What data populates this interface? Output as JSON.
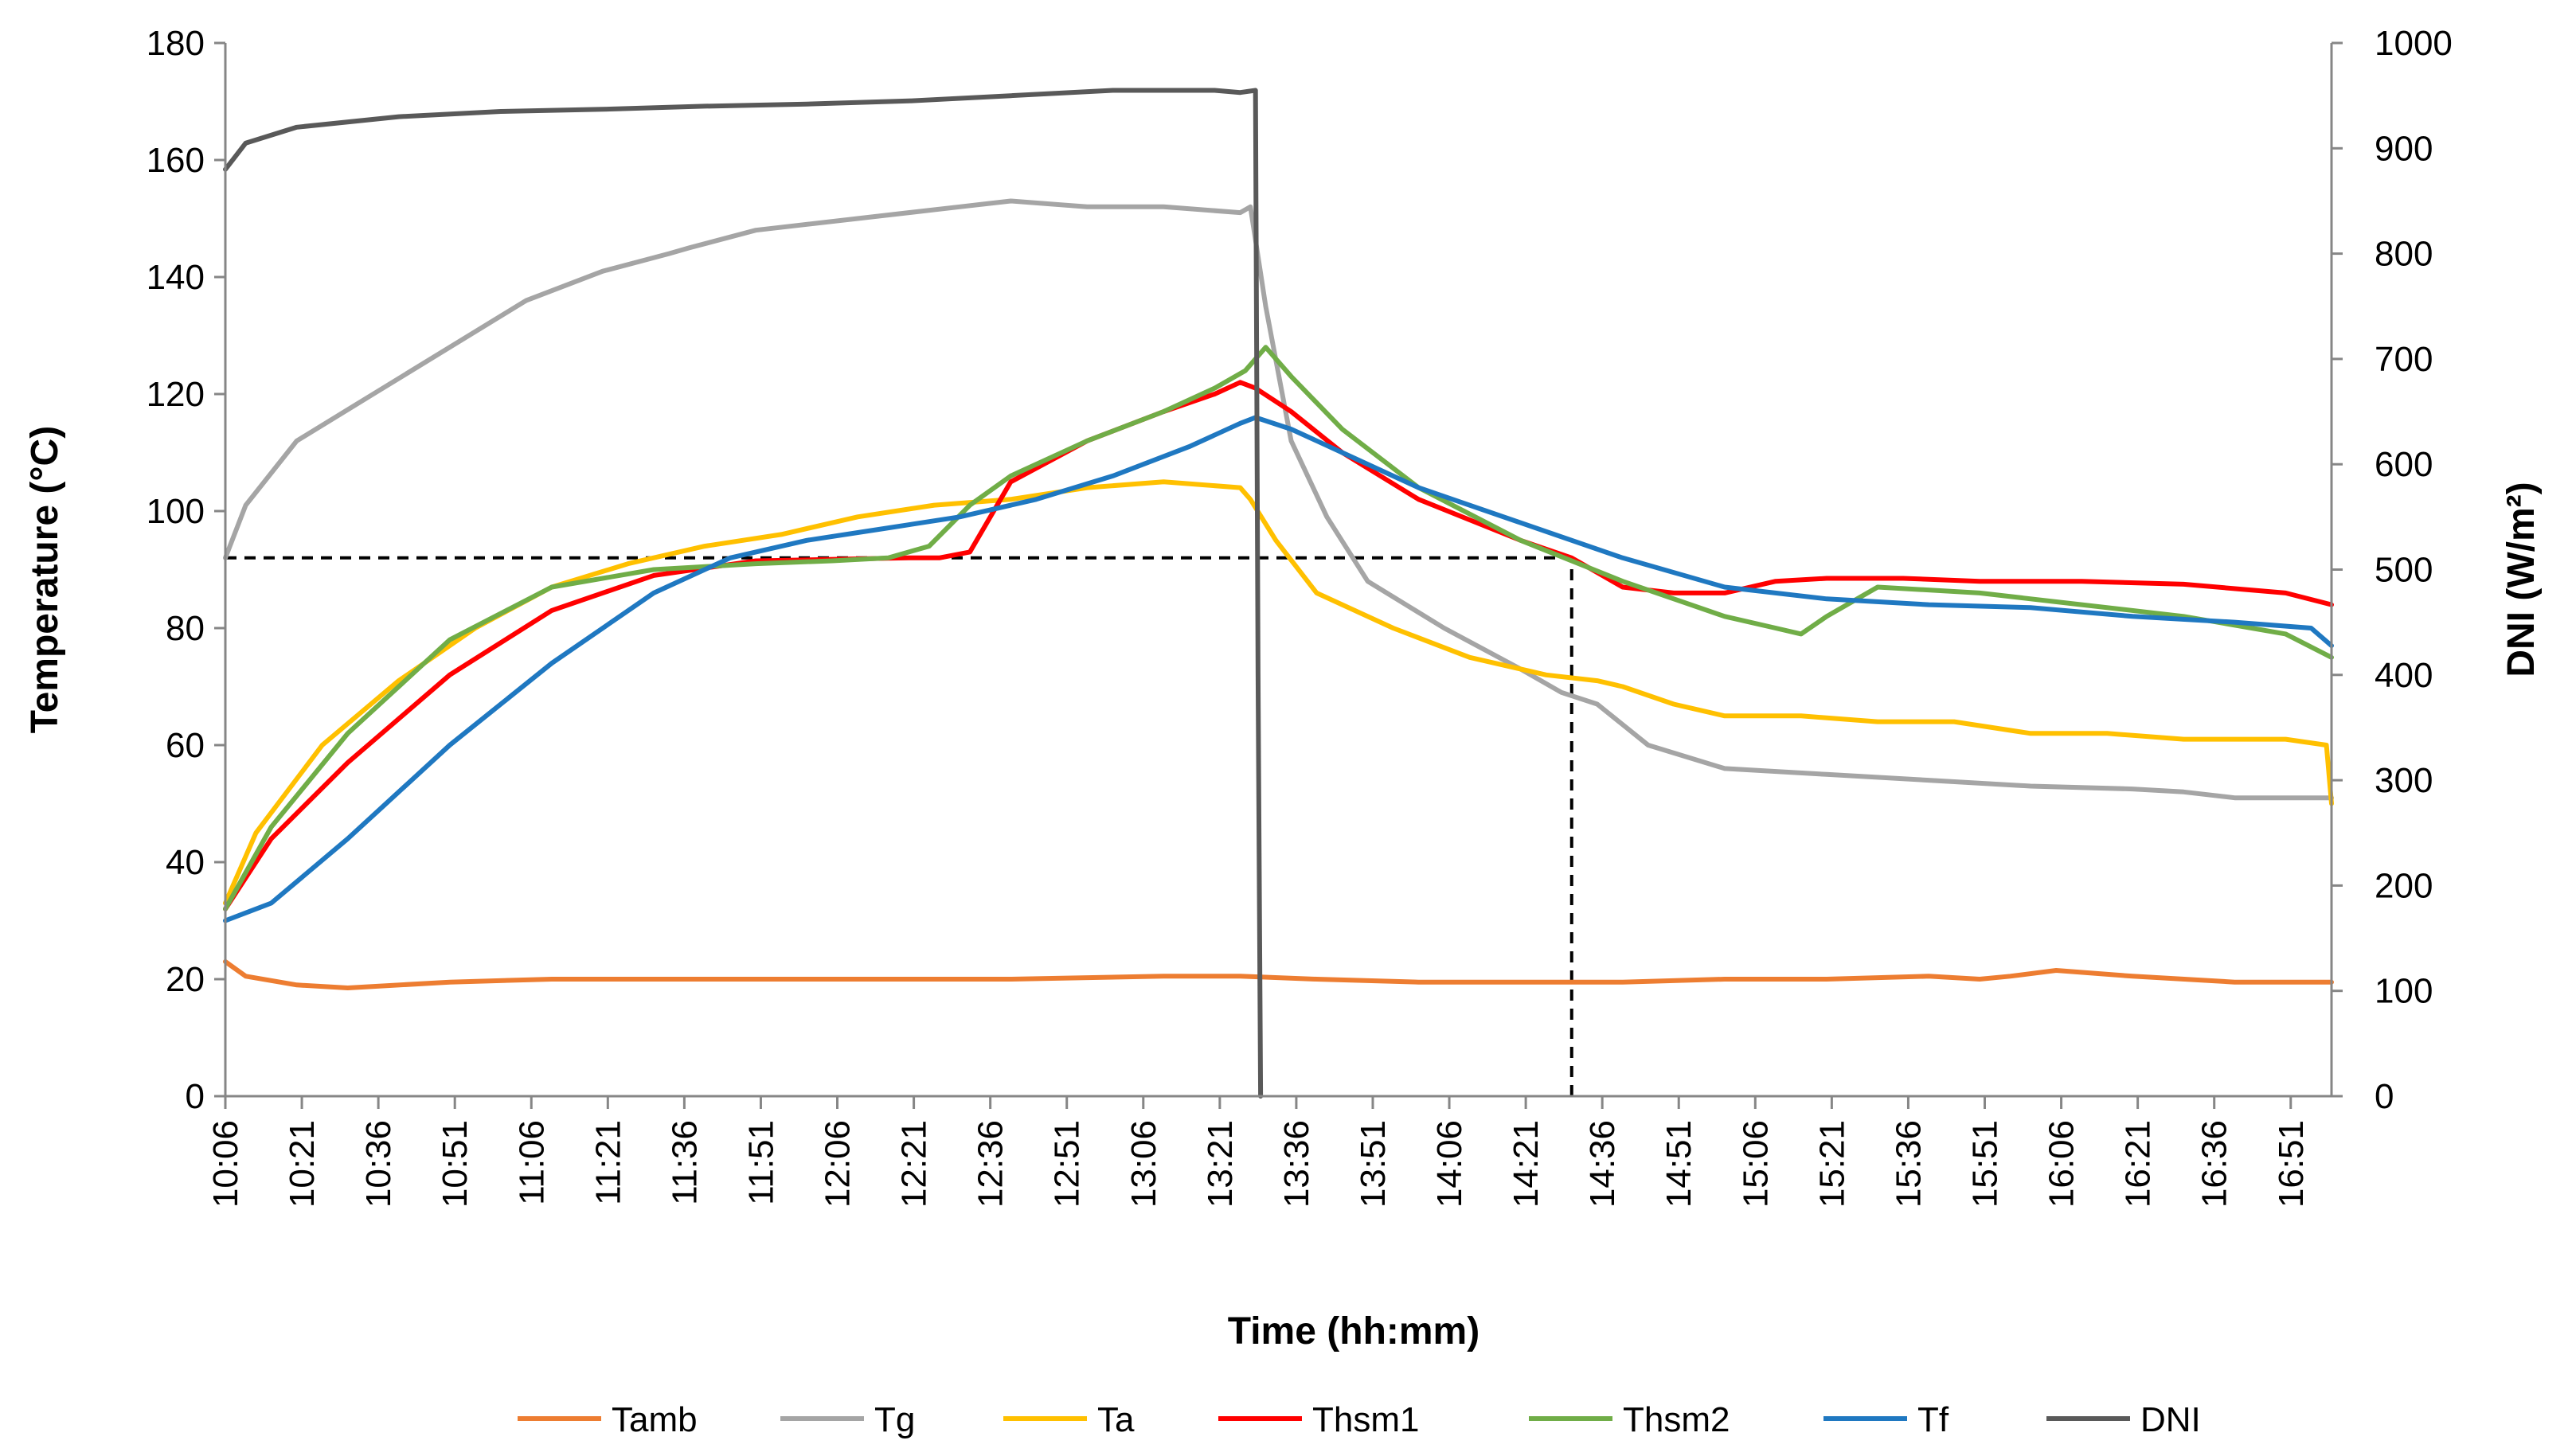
{
  "chart_data": {
    "type": "line",
    "title": "",
    "xlabel": "Time (hh:mm)",
    "ylabel": "Temperature (°C)",
    "y2label": "DNI (W/m²)",
    "ylim": [
      0,
      180
    ],
    "y2lim": [
      0,
      1000
    ],
    "yticks": [
      0,
      20,
      40,
      60,
      80,
      100,
      120,
      140,
      160,
      180
    ],
    "y2ticks": [
      0,
      100,
      200,
      300,
      400,
      500,
      600,
      700,
      800,
      900,
      1000
    ],
    "x_start_min": 606,
    "x_end_min": 1019,
    "x_tick_labels": [
      "10:06",
      "10:21",
      "10:36",
      "10:51",
      "11:06",
      "11:21",
      "11:36",
      "11:51",
      "12:06",
      "12:21",
      "12:36",
      "12:51",
      "13:06",
      "13:21",
      "13:36",
      "13:51",
      "14:06",
      "14:21",
      "14:36",
      "14:51",
      "15:06",
      "15:21",
      "15:36",
      "15:51",
      "16:06",
      "16:21",
      "16:36",
      "16:51"
    ],
    "legend_position": "bottom",
    "reference_lines": [
      {
        "type": "horizontal",
        "axis": "left",
        "y": 92,
        "x_from_min": 606,
        "x_to_min": 870,
        "style": "dashed"
      },
      {
        "type": "vertical",
        "x_min": 870,
        "y_from": 0,
        "y_to": 92,
        "style": "dashed"
      }
    ],
    "series": [
      {
        "name": "Tamb",
        "color": "#ED7D31",
        "axis": "left",
        "x": [
          606,
          610,
          620,
          630,
          650,
          670,
          700,
          730,
          760,
          790,
          805,
          820,
          840,
          860,
          880,
          900,
          920,
          940,
          950,
          956,
          965,
          980,
          1000,
          1019
        ],
        "y": [
          23,
          20.5,
          19,
          18.5,
          19.5,
          20,
          20,
          20,
          20,
          20.5,
          20.5,
          20,
          19.5,
          19.5,
          19.5,
          20,
          20,
          20.5,
          20,
          20.5,
          21.5,
          20.5,
          19.5,
          19.5
        ]
      },
      {
        "name": "Tg",
        "color": "#A5A5A5",
        "axis": "left",
        "x": [
          606,
          610,
          620,
          635,
          650,
          665,
          680,
          693,
          697,
          710,
          730,
          750,
          760,
          775,
          790,
          805,
          807,
          810,
          815,
          822,
          830,
          845,
          860,
          868,
          875,
          885,
          900,
          920,
          940,
          960,
          980,
          990,
          1000,
          1019
        ],
        "y": [
          92,
          101,
          112,
          120,
          128,
          136,
          141,
          144,
          145,
          148,
          150,
          152,
          153,
          152,
          152,
          151,
          152,
          135,
          112,
          99,
          88,
          80,
          73,
          69,
          67,
          60,
          56,
          55,
          54,
          53,
          52.5,
          52,
          51,
          51
        ]
      },
      {
        "name": "Ta",
        "color": "#FFC000",
        "axis": "left",
        "x": [
          606,
          612,
          625,
          640,
          655,
          670,
          685,
          700,
          715,
          730,
          745,
          760,
          775,
          790,
          805,
          807,
          812,
          820,
          835,
          850,
          865,
          875,
          880,
          890,
          900,
          915,
          930,
          945,
          960,
          975,
          990,
          1010,
          1018,
          1019
        ],
        "y": [
          33,
          45,
          60,
          71,
          80,
          87,
          91,
          94,
          96,
          99,
          101,
          102,
          104,
          105,
          104,
          102,
          95,
          86,
          80,
          75,
          72,
          71,
          70,
          67,
          65,
          65,
          64,
          64,
          62,
          62,
          61,
          61,
          60,
          50
        ]
      },
      {
        "name": "Thsm1",
        "color": "#FF0000",
        "axis": "left",
        "x": [
          606,
          615,
          630,
          650,
          670,
          690,
          710,
          740,
          746,
          752,
          760,
          775,
          790,
          800,
          805,
          808,
          815,
          825,
          840,
          860,
          870,
          880,
          890,
          900,
          910,
          920,
          935,
          950,
          970,
          990,
          1010,
          1019
        ],
        "y": [
          32,
          44,
          57,
          72,
          83,
          89,
          91.5,
          92,
          92,
          93,
          105,
          112,
          117,
          120,
          122,
          121,
          117,
          110,
          102,
          95,
          92,
          87,
          86,
          86,
          88,
          88.5,
          88.5,
          88,
          88,
          87.5,
          86,
          84
        ]
      },
      {
        "name": "Thsm2",
        "color": "#70AD47",
        "axis": "left",
        "x": [
          606,
          615,
          630,
          650,
          670,
          690,
          710,
          725,
          736,
          744,
          752,
          760,
          775,
          790,
          800,
          806,
          810,
          815,
          825,
          840,
          860,
          880,
          900,
          910,
          915,
          920,
          930,
          950,
          970,
          990,
          1010,
          1019
        ],
        "y": [
          32,
          46,
          62,
          78,
          87,
          90,
          91,
          91.5,
          92,
          94,
          101,
          106,
          112,
          117,
          121,
          124,
          128,
          123,
          114,
          104,
          95,
          88,
          82,
          80,
          79,
          82,
          87,
          86,
          84,
          82,
          79,
          75
        ]
      },
      {
        "name": "Tf",
        "color": "#1F78C1",
        "axis": "left",
        "x": [
          606,
          615,
          630,
          650,
          670,
          690,
          705,
          720,
          735,
          750,
          765,
          780,
          795,
          805,
          808,
          815,
          825,
          840,
          860,
          880,
          900,
          920,
          940,
          960,
          980,
          1000,
          1015,
          1019
        ],
        "y": [
          30,
          33,
          44,
          60,
          74,
          86,
          92,
          95,
          97,
          99,
          102,
          106,
          111,
          115,
          116,
          114,
          110,
          104,
          98,
          92,
          87,
          85,
          84,
          83.5,
          82,
          81,
          80,
          77
        ]
      },
      {
        "name": "DNI",
        "color": "#595959",
        "axis": "right",
        "x": [
          606,
          610,
          620,
          640,
          660,
          680,
          700,
          720,
          740,
          760,
          780,
          800,
          805,
          808,
          808.5,
          809
        ],
        "y": [
          880,
          905,
          920,
          930,
          935,
          937,
          940,
          942,
          945,
          950,
          955,
          955,
          953,
          955,
          400,
          0
        ]
      }
    ]
  }
}
